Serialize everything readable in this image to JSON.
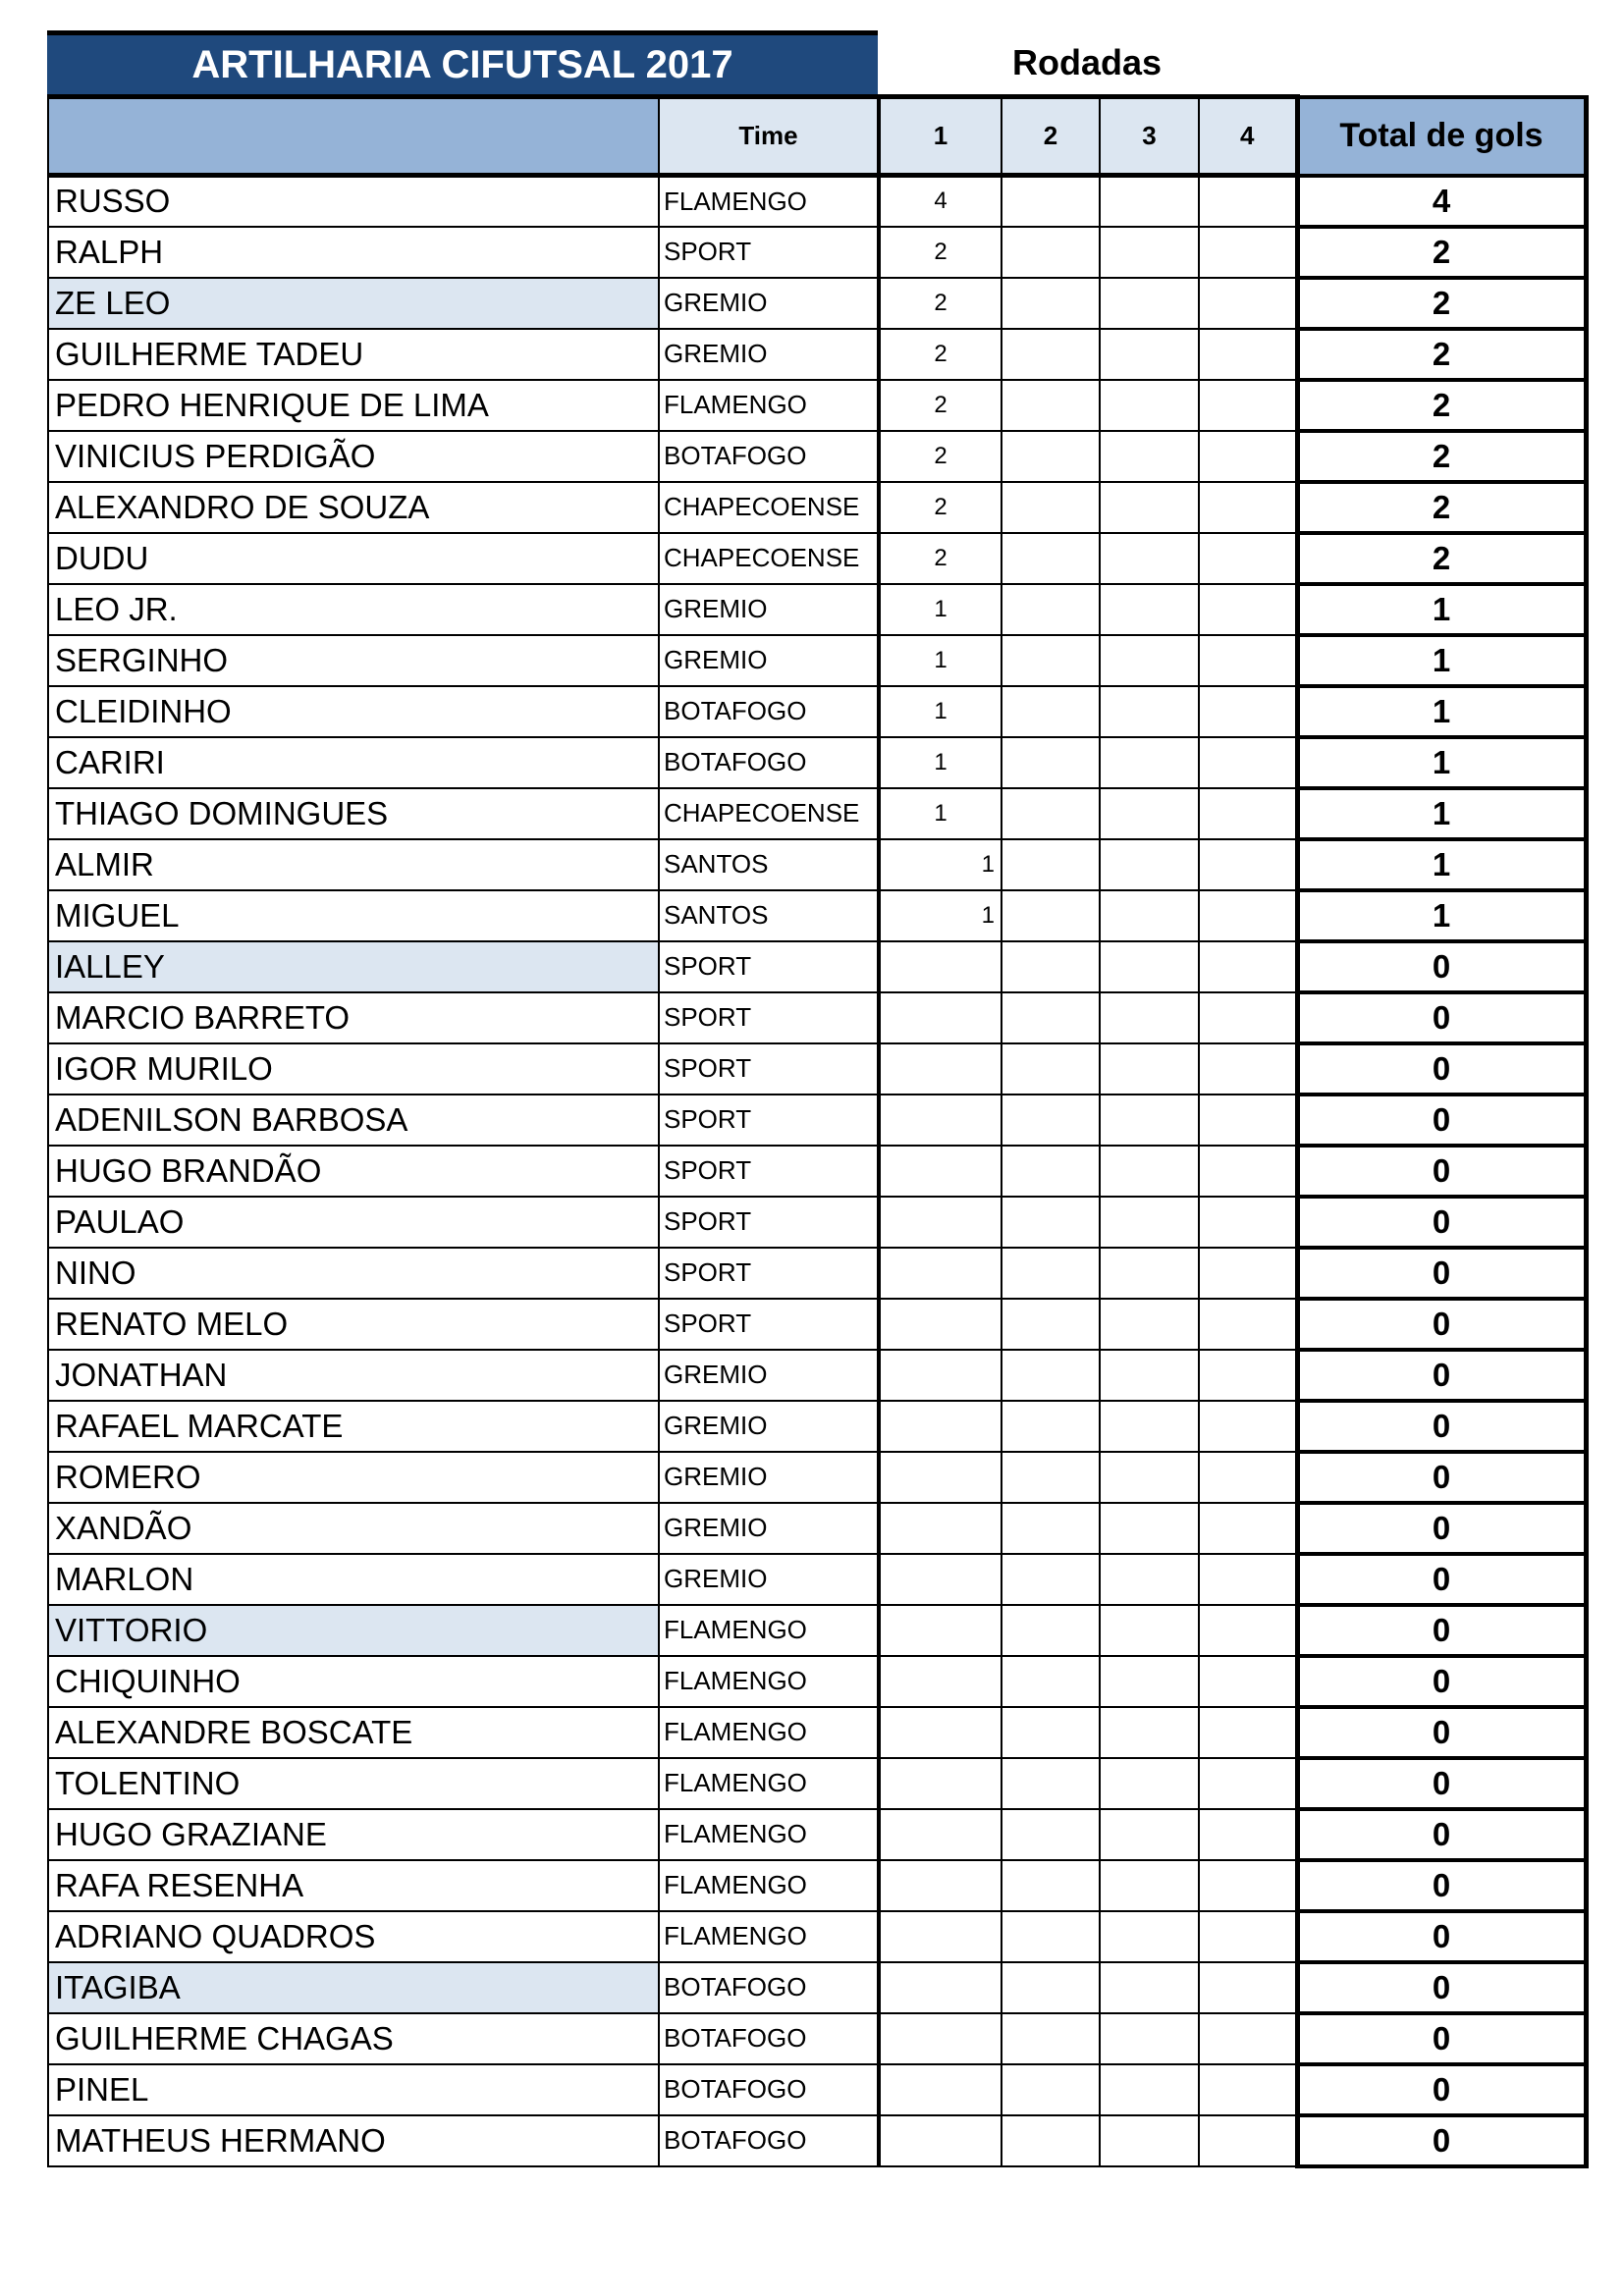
{
  "title": "ARTILHARIA CIFUTSAL 2017",
  "rounds_label": "Rodadas",
  "header": {
    "name": "",
    "team": "Time",
    "rounds": [
      "1",
      "2",
      "3",
      "4"
    ],
    "total": "Total de gols"
  },
  "highlight_color": "#dce6f1",
  "title_color": "#1f497d",
  "header_color": "#95b3d7",
  "rows": [
    {
      "name": "RUSSO",
      "team": "FLAMENGO",
      "r": [
        "4",
        "",
        "",
        ""
      ],
      "total": "4"
    },
    {
      "name": "RALPH",
      "team": "SPORT",
      "r": [
        "2",
        "",
        "",
        ""
      ],
      "total": "2"
    },
    {
      "name": "ZE LEO",
      "team": "GREMIO",
      "r": [
        "2",
        "",
        "",
        ""
      ],
      "total": "2",
      "hl": true
    },
    {
      "name": "GUILHERME TADEU",
      "team": "GREMIO",
      "r": [
        "2",
        "",
        "",
        ""
      ],
      "total": "2"
    },
    {
      "name": "PEDRO HENRIQUE DE LIMA",
      "team": "FLAMENGO",
      "r": [
        "2",
        "",
        "",
        ""
      ],
      "total": "2"
    },
    {
      "name": "VINICIUS PERDIGÃO",
      "team": "BOTAFOGO",
      "r": [
        "2",
        "",
        "",
        ""
      ],
      "total": "2"
    },
    {
      "name": "ALEXANDRO DE SOUZA",
      "team": "CHAPECOENSE",
      "r": [
        "2",
        "",
        "",
        ""
      ],
      "total": "2"
    },
    {
      "name": "DUDU",
      "team": "CHAPECOENSE",
      "r": [
        "2",
        "",
        "",
        ""
      ],
      "total": "2"
    },
    {
      "name": "LEO JR.",
      "team": "GREMIO",
      "r": [
        "1",
        "",
        "",
        ""
      ],
      "total": "1"
    },
    {
      "name": "SERGINHO",
      "team": "GREMIO",
      "r": [
        "1",
        "",
        "",
        ""
      ],
      "total": "1"
    },
    {
      "name": "CLEIDINHO",
      "team": "BOTAFOGO",
      "r": [
        "1",
        "",
        "",
        ""
      ],
      "total": "1"
    },
    {
      "name": "CARIRI",
      "team": "BOTAFOGO",
      "r": [
        "1",
        "",
        "",
        ""
      ],
      "total": "1"
    },
    {
      "name": "THIAGO DOMINGUES",
      "team": "CHAPECOENSE",
      "r": [
        "1",
        "",
        "",
        ""
      ],
      "total": "1"
    },
    {
      "name": "ALMIR",
      "team": "SANTOS",
      "r": [
        "1",
        "",
        "",
        ""
      ],
      "total": "1",
      "right": true
    },
    {
      "name": "MIGUEL",
      "team": "SANTOS",
      "r": [
        "1",
        "",
        "",
        ""
      ],
      "total": "1",
      "right": true
    },
    {
      "name": "IALLEY",
      "team": "SPORT",
      "r": [
        "",
        "",
        "",
        ""
      ],
      "total": "0",
      "hl": true
    },
    {
      "name": "MARCIO BARRETO",
      "team": "SPORT",
      "r": [
        "",
        "",
        "",
        ""
      ],
      "total": "0"
    },
    {
      "name": "IGOR MURILO",
      "team": "SPORT",
      "r": [
        "",
        "",
        "",
        ""
      ],
      "total": "0"
    },
    {
      "name": "ADENILSON BARBOSA",
      "team": "SPORT",
      "r": [
        "",
        "",
        "",
        ""
      ],
      "total": "0"
    },
    {
      "name": "HUGO BRANDÃO",
      "team": "SPORT",
      "r": [
        "",
        "",
        "",
        ""
      ],
      "total": "0"
    },
    {
      "name": "PAULAO",
      "team": "SPORT",
      "r": [
        "",
        "",
        "",
        ""
      ],
      "total": "0"
    },
    {
      "name": "NINO",
      "team": "SPORT",
      "r": [
        "",
        "",
        "",
        ""
      ],
      "total": "0"
    },
    {
      "name": "RENATO MELO",
      "team": "SPORT",
      "r": [
        "",
        "",
        "",
        ""
      ],
      "total": "0"
    },
    {
      "name": "JONATHAN",
      "team": "GREMIO",
      "r": [
        "",
        "",
        "",
        ""
      ],
      "total": "0"
    },
    {
      "name": "RAFAEL MARCATE",
      "team": "GREMIO",
      "r": [
        "",
        "",
        "",
        ""
      ],
      "total": "0"
    },
    {
      "name": "ROMERO",
      "team": "GREMIO",
      "r": [
        "",
        "",
        "",
        ""
      ],
      "total": "0"
    },
    {
      "name": "XANDÃO",
      "team": "GREMIO",
      "r": [
        "",
        "",
        "",
        ""
      ],
      "total": "0"
    },
    {
      "name": "MARLON",
      "team": "GREMIO",
      "r": [
        "",
        "",
        "",
        ""
      ],
      "total": "0"
    },
    {
      "name": "VITTORIO",
      "team": "FLAMENGO",
      "r": [
        "",
        "",
        "",
        ""
      ],
      "total": "0",
      "hl": true
    },
    {
      "name": "CHIQUINHO",
      "team": "FLAMENGO",
      "r": [
        "",
        "",
        "",
        ""
      ],
      "total": "0"
    },
    {
      "name": "ALEXANDRE BOSCATE",
      "team": "FLAMENGO",
      "r": [
        "",
        "",
        "",
        ""
      ],
      "total": "0"
    },
    {
      "name": "TOLENTINO",
      "team": "FLAMENGO",
      "r": [
        "",
        "",
        "",
        ""
      ],
      "total": "0"
    },
    {
      "name": "HUGO GRAZIANE",
      "team": "FLAMENGO",
      "r": [
        "",
        "",
        "",
        ""
      ],
      "total": "0"
    },
    {
      "name": "RAFA RESENHA",
      "team": "FLAMENGO",
      "r": [
        "",
        "",
        "",
        ""
      ],
      "total": "0"
    },
    {
      "name": "ADRIANO QUADROS",
      "team": "FLAMENGO",
      "r": [
        "",
        "",
        "",
        ""
      ],
      "total": "0"
    },
    {
      "name": "ITAGIBA",
      "team": "BOTAFOGO",
      "r": [
        "",
        "",
        "",
        ""
      ],
      "total": "0",
      "hl": true
    },
    {
      "name": "GUILHERME CHAGAS",
      "team": "BOTAFOGO",
      "r": [
        "",
        "",
        "",
        ""
      ],
      "total": "0"
    },
    {
      "name": "PINEL",
      "team": "BOTAFOGO",
      "r": [
        "",
        "",
        "",
        ""
      ],
      "total": "0"
    },
    {
      "name": "MATHEUS HERMANO",
      "team": "BOTAFOGO",
      "r": [
        "",
        "",
        "",
        ""
      ],
      "total": "0"
    }
  ]
}
